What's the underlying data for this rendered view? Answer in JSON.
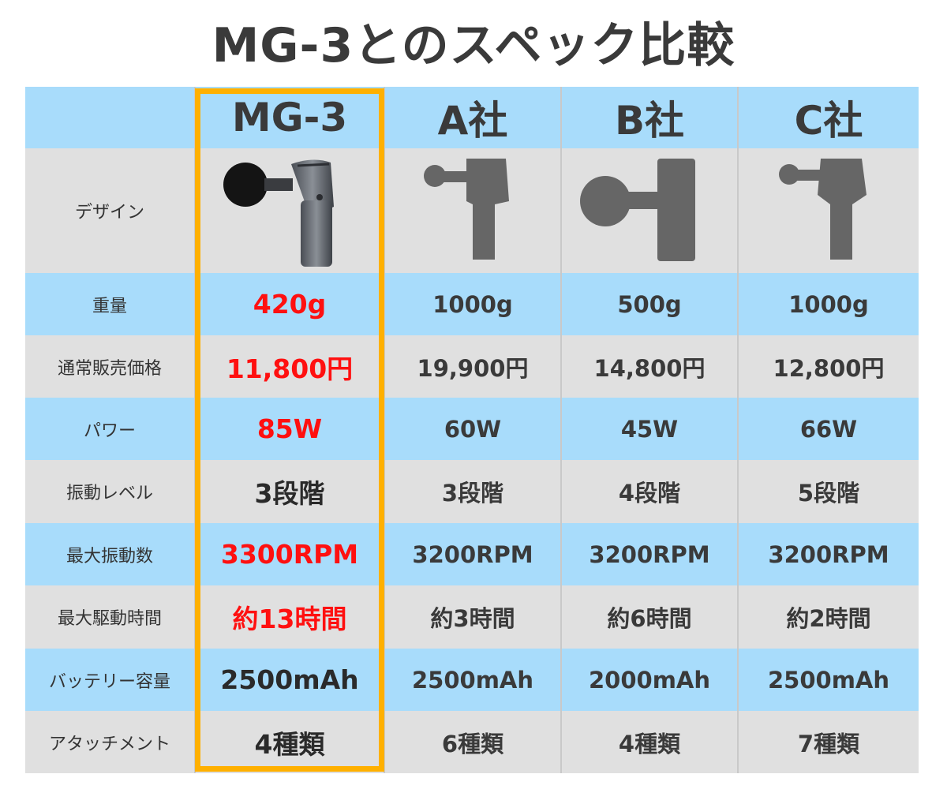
{
  "title": "MG-3とのスペック比較",
  "headers": [
    "",
    "MG-3",
    "A社",
    "B社",
    "C社"
  ],
  "design_label": "デザイン",
  "rows": [
    {
      "label": "重量",
      "values": [
        "420g",
        "1000g",
        "500g",
        "1000g"
      ],
      "highlight_color": "red"
    },
    {
      "label": "通常販売価格",
      "values": [
        "11,800円",
        "19,900円",
        "14,800円",
        "12,800円"
      ],
      "highlight_color": "red"
    },
    {
      "label": "パワー",
      "values": [
        "85W",
        "60W",
        "45W",
        "66W"
      ],
      "highlight_color": "red"
    },
    {
      "label": "振動レベル",
      "values": [
        "3段階",
        "3段階",
        "4段階",
        "5段階"
      ],
      "highlight_color": "dark"
    },
    {
      "label": "最大振動数",
      "values": [
        "3300RPM",
        "3200RPM",
        "3200RPM",
        "3200RPM"
      ],
      "highlight_color": "red"
    },
    {
      "label": "最大駆動時間",
      "values": [
        "約13時間",
        "約3時間",
        "約6時間",
        "約2時間"
      ],
      "highlight_color": "red"
    },
    {
      "label": "バッテリー容量",
      "values": [
        "2500mAh",
        "2500mAh",
        "2000mAh",
        "2500mAh"
      ],
      "highlight_color": "dark"
    },
    {
      "label": "アタッチメント",
      "values": [
        "4種類",
        "6種類",
        "4種類",
        "7種類"
      ],
      "highlight_color": "dark"
    }
  ],
  "colors": {
    "blue_row": "#a8dcfb",
    "gray_row": "#e0e0e0",
    "highlight_border": "#ffb000",
    "highlight_red": "#ff1010"
  },
  "icons": [
    "massage-gun-photo",
    "massage-gun-silhouette-a",
    "massage-gun-silhouette-b",
    "massage-gun-silhouette-c"
  ]
}
